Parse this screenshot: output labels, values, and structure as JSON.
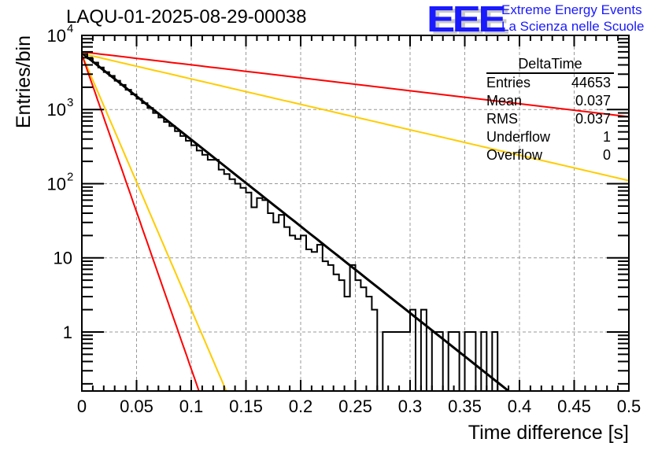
{
  "header": {
    "title": "LAQU-01-2025-08-29-00038"
  },
  "logo": {
    "mark": "EEE",
    "line1": "Extreme Energy Events",
    "line2": "La Scienza nelle Scuole",
    "color": "#1a1aff"
  },
  "stats_box": {
    "title": "DeltaTime",
    "rows": [
      {
        "label": "Entries",
        "value": "44653"
      },
      {
        "label": "Mean",
        "value": "0.037"
      },
      {
        "label": "RMS",
        "value": "0.037"
      },
      {
        "label": "Underflow",
        "value": "1"
      },
      {
        "label": "Overflow",
        "value": "0"
      }
    ]
  },
  "chart_data": {
    "type": "histogram",
    "title": "LAQU-01-2025-08-29-00038",
    "xlabel": "Time difference [s]",
    "ylabel": "Entries/bin",
    "xlim": [
      0,
      0.5
    ],
    "ylim": [
      0.16,
      10000
    ],
    "yscale": "log",
    "grid": true,
    "x_ticks": [
      "0",
      "0.05",
      "0.1",
      "0.15",
      "0.2",
      "0.25",
      "0.3",
      "0.35",
      "0.4",
      "0.45",
      "0.5"
    ],
    "y_ticks": [
      {
        "base": "10",
        "exp": "4",
        "value": 10000
      },
      {
        "base": "10",
        "exp": "3",
        "value": 1000
      },
      {
        "base": "10",
        "exp": "2",
        "value": 100
      },
      {
        "base": "10",
        "exp": "",
        "value": 10
      },
      {
        "base": "1",
        "exp": "",
        "value": 1
      }
    ],
    "bin_width": 0.005,
    "histogram_values": [
      5600,
      4900,
      4300,
      3700,
      3200,
      2850,
      2450,
      2150,
      1850,
      1600,
      1400,
      1220,
      1050,
      900,
      780,
      680,
      600,
      510,
      440,
      380,
      330,
      280,
      245,
      210,
      210,
      155,
      135,
      115,
      100,
      88,
      76,
      48,
      64,
      60,
      40,
      30,
      38,
      26,
      20,
      18,
      20,
      13,
      12,
      15,
      9,
      8,
      6,
      5,
      3,
      8,
      5,
      4,
      3,
      2,
      0,
      1,
      1,
      1,
      1,
      1,
      2,
      0,
      2,
      0,
      1,
      1,
      0,
      1,
      1,
      0,
      1,
      1,
      0,
      1,
      0,
      1,
      0,
      0,
      0,
      0,
      0,
      0,
      0,
      0,
      0,
      0,
      0,
      0,
      0,
      0,
      0,
      0,
      0,
      0,
      0,
      0,
      0,
      0,
      0,
      0
    ],
    "fit_lines": [
      {
        "name": "fit",
        "color": "#000000",
        "x": [
          0,
          0.39
        ],
        "y": [
          5800,
          0.16
        ]
      },
      {
        "name": "red-slow",
        "color": "#ff0000",
        "x": [
          0,
          0.5
        ],
        "y": [
          6000,
          800
        ]
      },
      {
        "name": "yellow-slow",
        "color": "#ffcc00",
        "x": [
          0,
          0.5
        ],
        "y": [
          5700,
          110
        ]
      },
      {
        "name": "yellow-fast",
        "color": "#ffcc00",
        "x": [
          0,
          0.132
        ],
        "y": [
          5500,
          0.16
        ]
      },
      {
        "name": "red-fast",
        "color": "#ff0000",
        "x": [
          0,
          0.107
        ],
        "y": [
          5500,
          0.16
        ]
      }
    ]
  }
}
